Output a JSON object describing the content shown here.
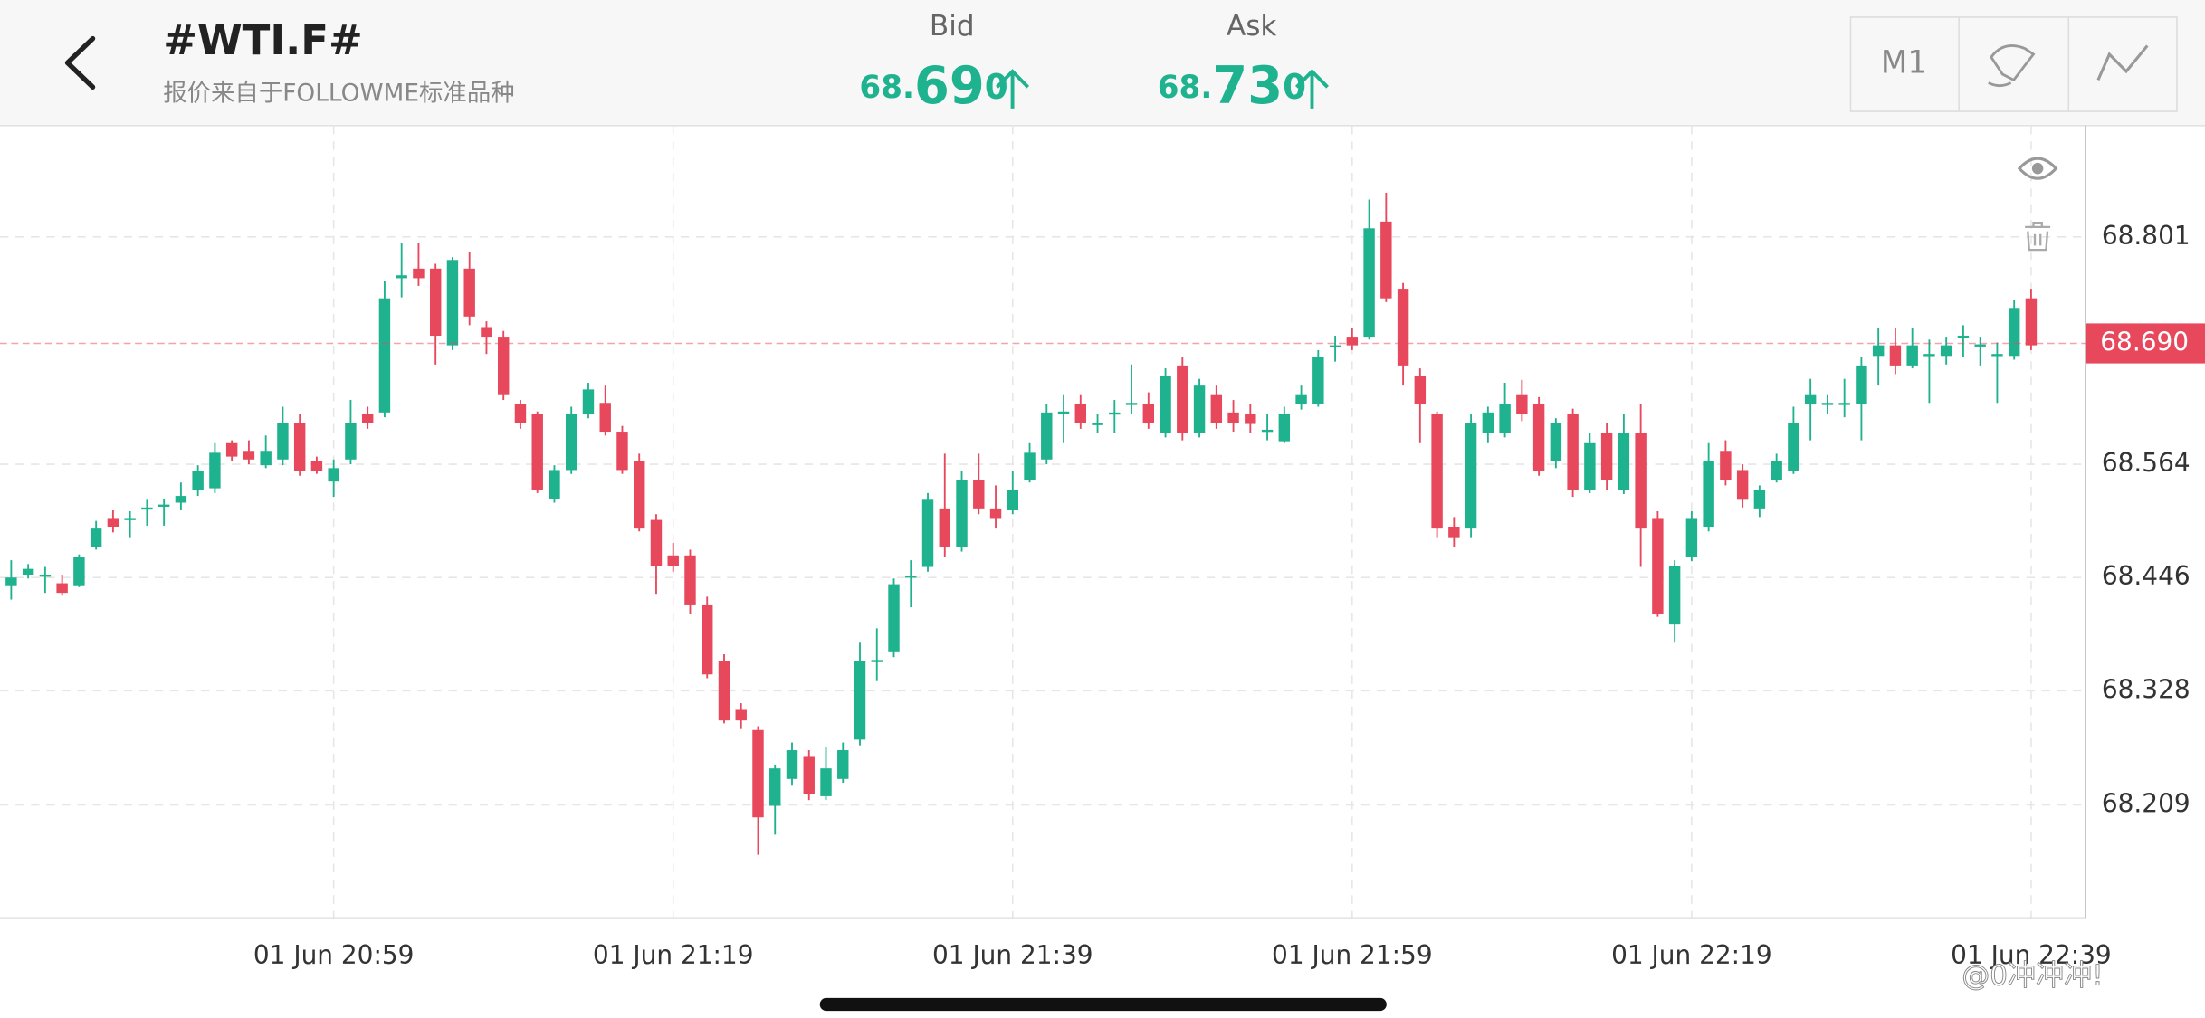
{
  "header": {
    "title": "#WTI.F#",
    "subtitle": "报价来自于FOLLOWME标准品种",
    "bid": {
      "label": "Bid",
      "price": "68.690"
    },
    "ask": {
      "label": "Ask",
      "price": "68.730"
    },
    "timeframe": "M1"
  },
  "watermark": "@0冲冲冲!",
  "chart_data": {
    "type": "candlestick",
    "up_color": "#1fb28e",
    "down_color": "#e8485c",
    "grid": true,
    "ylim": [
      68.091,
      68.917
    ],
    "yticks": [
      68.209,
      68.328,
      68.446,
      68.564,
      68.801
    ],
    "xlim": [
      -0.66,
      122.2
    ],
    "xticks": [
      {
        "value": 19,
        "label": "01 Jun 20:59"
      },
      {
        "value": 39,
        "label": "01 Jun 21:19"
      },
      {
        "value": 59,
        "label": "01 Jun 21:39"
      },
      {
        "value": 79,
        "label": "01 Jun 21:59"
      },
      {
        "value": 99,
        "label": "01 Jun 22:19"
      },
      {
        "value": 119,
        "label": "01 Jun 22:39"
      }
    ],
    "last_price": {
      "value": 68.69,
      "label": "68.690"
    },
    "open": [
      68.437,
      68.449,
      68.448,
      68.44,
      68.437,
      68.478,
      68.508,
      68.506,
      68.518,
      68.521,
      68.524,
      68.537,
      68.539,
      68.586,
      68.578,
      68.563,
      68.569,
      68.607,
      68.567,
      68.546,
      68.569,
      68.616,
      68.618,
      68.758,
      68.768,
      68.768,
      68.688,
      68.768,
      68.707,
      68.697,
      68.627,
      68.616,
      68.528,
      68.558,
      68.616,
      68.628,
      68.598,
      68.567,
      68.506,
      68.469,
      68.469,
      68.417,
      68.359,
      68.308,
      68.287,
      68.208,
      68.236,
      68.259,
      68.218,
      68.236,
      68.277,
      68.359,
      68.369,
      68.446,
      68.457,
      68.518,
      68.478,
      68.548,
      68.518,
      68.516,
      68.548,
      68.569,
      68.618,
      68.627,
      68.606,
      68.616,
      68.627,
      68.627,
      68.597,
      68.667,
      68.597,
      68.637,
      68.618,
      68.616,
      68.598,
      68.588,
      68.627,
      68.627,
      68.686,
      68.697,
      68.697,
      68.817,
      68.747,
      68.656,
      68.616,
      68.499,
      68.497,
      68.597,
      68.597,
      68.637,
      68.627,
      68.567,
      68.616,
      68.537,
      68.597,
      68.537,
      68.597,
      68.508,
      68.397,
      68.467,
      68.499,
      68.578,
      68.558,
      68.518,
      68.548,
      68.557,
      68.627,
      68.627,
      68.627,
      68.627,
      68.677,
      68.688,
      68.667,
      68.677,
      68.677,
      68.697,
      68.688,
      68.677,
      68.677,
      68.737
    ],
    "close": [
      68.446,
      68.455,
      68.449,
      68.43,
      68.467,
      68.497,
      68.499,
      68.508,
      68.519,
      68.522,
      68.531,
      68.557,
      68.576,
      68.572,
      68.569,
      68.578,
      68.607,
      68.557,
      68.557,
      68.56,
      68.607,
      68.607,
      68.737,
      68.761,
      68.758,
      68.698,
      68.777,
      68.718,
      68.697,
      68.637,
      68.607,
      68.537,
      68.558,
      68.616,
      68.642,
      68.598,
      68.558,
      68.497,
      68.458,
      68.458,
      68.417,
      68.345,
      68.297,
      68.297,
      68.196,
      68.247,
      68.266,
      68.22,
      68.247,
      68.266,
      68.359,
      68.36,
      68.439,
      68.448,
      68.527,
      68.478,
      68.548,
      68.518,
      68.508,
      68.537,
      68.576,
      68.618,
      68.619,
      68.607,
      68.607,
      68.618,
      68.628,
      68.607,
      68.656,
      68.597,
      68.646,
      68.607,
      68.607,
      68.606,
      68.6,
      68.616,
      68.637,
      68.676,
      68.688,
      68.688,
      68.81,
      68.737,
      68.667,
      68.627,
      68.497,
      68.488,
      68.607,
      68.618,
      68.627,
      68.616,
      68.557,
      68.607,
      68.537,
      68.586,
      68.548,
      68.597,
      68.497,
      68.408,
      68.458,
      68.508,
      68.567,
      68.548,
      68.527,
      68.537,
      68.567,
      68.607,
      68.637,
      68.628,
      68.628,
      68.667,
      68.688,
      68.667,
      68.688,
      68.679,
      68.688,
      68.698,
      68.689,
      68.679,
      68.727,
      68.688
    ],
    "high": [
      68.464,
      68.46,
      68.457,
      68.449,
      68.47,
      68.505,
      68.516,
      68.515,
      68.527,
      68.528,
      68.545,
      68.563,
      68.586,
      68.589,
      68.589,
      68.594,
      68.624,
      68.616,
      68.572,
      68.569,
      68.631,
      68.624,
      68.755,
      68.795,
      68.795,
      68.773,
      68.78,
      68.785,
      68.713,
      68.703,
      68.631,
      68.619,
      68.563,
      68.624,
      68.649,
      68.646,
      68.604,
      68.575,
      68.512,
      68.482,
      68.475,
      68.426,
      68.366,
      68.315,
      68.291,
      68.251,
      68.274,
      68.266,
      68.269,
      68.274,
      68.378,
      68.393,
      68.445,
      68.464,
      68.534,
      68.575,
      68.557,
      68.575,
      68.542,
      68.557,
      68.586,
      68.627,
      68.637,
      68.637,
      68.616,
      68.631,
      68.668,
      68.639,
      68.664,
      68.676,
      68.653,
      68.646,
      68.631,
      68.627,
      68.616,
      68.624,
      68.646,
      68.683,
      68.698,
      68.706,
      68.84,
      68.847,
      68.753,
      68.664,
      68.619,
      68.509,
      68.616,
      68.624,
      68.649,
      68.652,
      68.634,
      68.612,
      68.622,
      68.597,
      68.607,
      68.616,
      68.627,
      68.515,
      68.464,
      68.515,
      68.586,
      68.589,
      68.564,
      68.542,
      68.575,
      68.624,
      68.653,
      68.637,
      68.653,
      68.676,
      68.706,
      68.706,
      68.706,
      68.694,
      68.697,
      68.709,
      68.697,
      68.691,
      68.735,
      68.747
    ],
    "low": [
      68.423,
      68.445,
      68.43,
      68.427,
      68.436,
      68.475,
      68.493,
      68.488,
      68.5,
      68.5,
      68.516,
      68.531,
      68.534,
      68.567,
      68.564,
      68.56,
      68.563,
      68.552,
      68.554,
      68.53,
      68.564,
      68.601,
      68.613,
      68.738,
      68.75,
      68.668,
      68.683,
      68.709,
      68.679,
      68.631,
      68.601,
      68.534,
      68.524,
      68.554,
      68.612,
      68.594,
      68.554,
      68.494,
      68.429,
      68.452,
      68.408,
      68.341,
      68.294,
      68.288,
      68.157,
      68.178,
      68.229,
      68.214,
      68.214,
      68.232,
      68.271,
      68.338,
      68.363,
      68.415,
      68.452,
      68.467,
      68.473,
      68.512,
      68.497,
      68.512,
      68.545,
      68.564,
      68.586,
      68.601,
      68.597,
      68.597,
      68.616,
      68.601,
      68.592,
      68.589,
      68.592,
      68.601,
      68.598,
      68.597,
      68.589,
      68.586,
      68.621,
      68.624,
      68.671,
      68.683,
      68.694,
      68.733,
      68.646,
      68.586,
      68.488,
      68.478,
      68.488,
      68.586,
      68.592,
      68.609,
      68.552,
      68.56,
      68.53,
      68.534,
      68.537,
      68.533,
      68.457,
      68.405,
      68.378,
      68.463,
      68.494,
      68.542,
      68.519,
      68.509,
      68.545,
      68.554,
      68.589,
      68.616,
      68.613,
      68.589,
      68.646,
      68.658,
      68.664,
      68.628,
      68.668,
      68.676,
      68.667,
      68.628,
      68.673,
      68.683
    ]
  }
}
